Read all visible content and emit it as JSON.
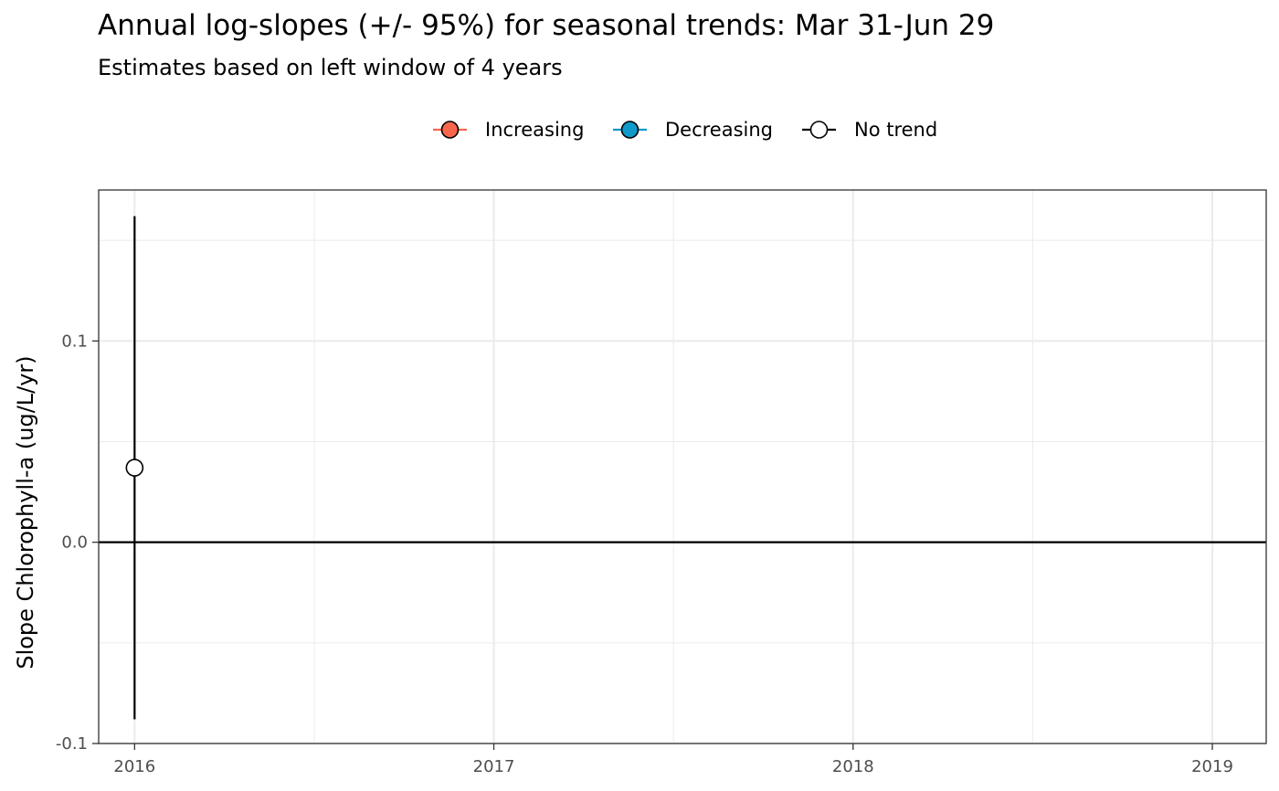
{
  "chart_data": {
    "type": "scatter",
    "title": "Annual log-slopes (+/- 95%) for seasonal trends: Mar 31-Jun 29",
    "subtitle": "Estimates based on left window of 4 years",
    "xlabel": "",
    "ylabel": "Slope Chlorophyll-a (ug/L/yr)",
    "xlim": [
      2015.9,
      2019.15
    ],
    "ylim": [
      -0.1,
      0.175
    ],
    "x_ticks": [
      2016,
      2017,
      2018,
      2019
    ],
    "x_tick_labels": [
      "2016",
      "2017",
      "2018",
      "2019"
    ],
    "y_ticks": [
      -0.1,
      0.0,
      0.1
    ],
    "y_tick_labels": [
      "-0.1",
      "0.0",
      "0.1"
    ],
    "grid": true,
    "reference_line_y": 0,
    "legend": {
      "position": "top",
      "entries": [
        {
          "label": "Increasing",
          "fill": "#f8674c",
          "line": "#f8674c"
        },
        {
          "label": "Decreasing",
          "fill": "#0f9ac9",
          "line": "#0f9ac9"
        },
        {
          "label": "No trend",
          "fill": "#ffffff",
          "line": "#000000"
        }
      ]
    },
    "series": [
      {
        "name": "No trend",
        "points": [
          {
            "x": 2016,
            "y": 0.037,
            "ylow": -0.088,
            "yhigh": 0.162
          }
        ]
      }
    ]
  }
}
